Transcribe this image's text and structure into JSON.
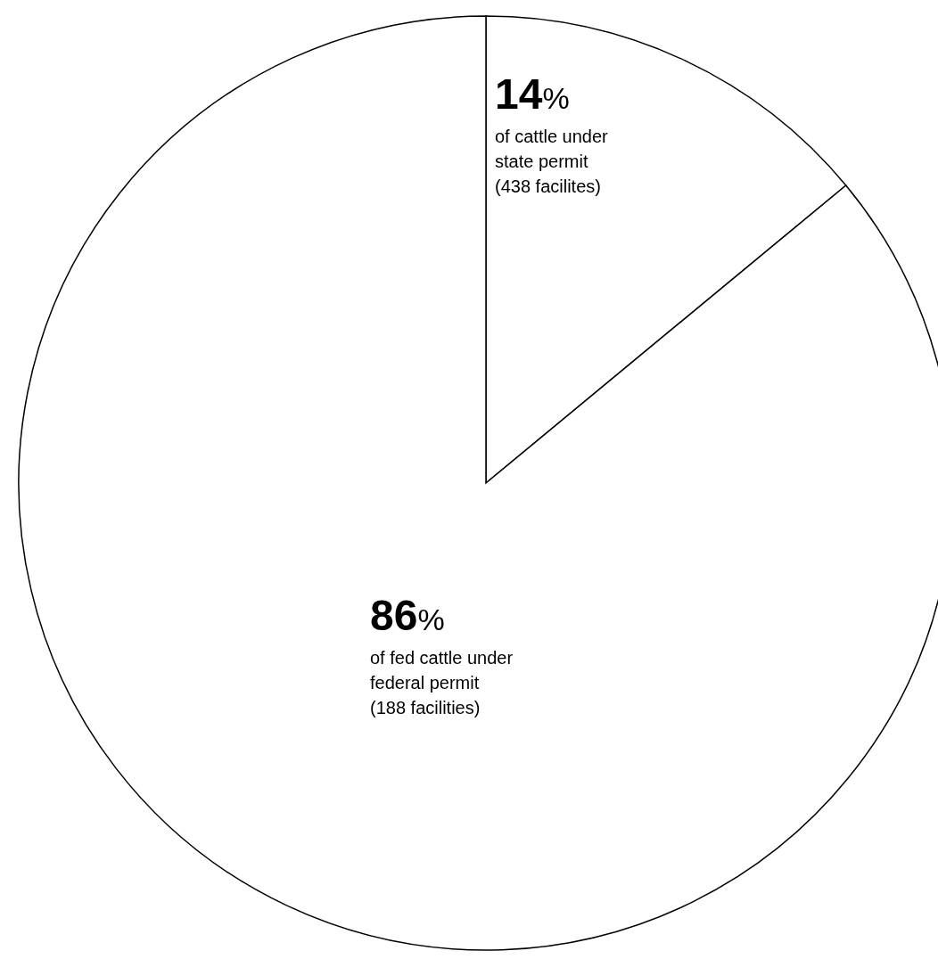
{
  "chart_data": {
    "type": "pie",
    "categories": [
      "of cattle under state permit (438 facilites)",
      "of fed cattle under federal permit (188 facilities)"
    ],
    "values": [
      14,
      86
    ],
    "colors": [
      "#ffffff",
      "#ffffff"
    ],
    "value_labels": [
      "14%",
      "86%"
    ]
  }
}
